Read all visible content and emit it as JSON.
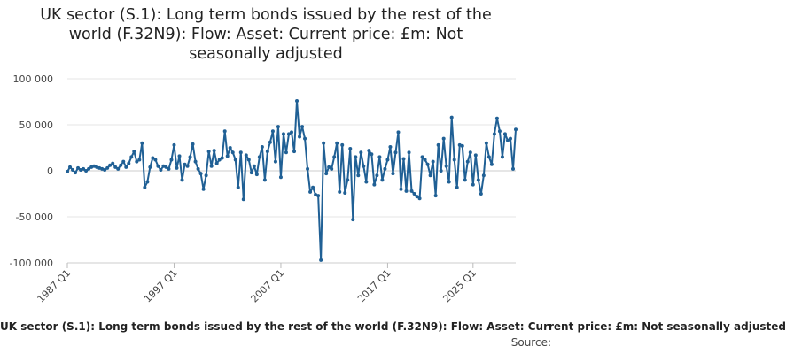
{
  "chart_data": {
    "type": "line",
    "title_lines": [
      "UK sector (S.1): Long term bonds issued by the rest of the",
      "world (F.32N9): Flow: Asset: Current price: £m: Not",
      "seasonally adjusted"
    ],
    "series_label": "UK sector (S.1): Long term bonds issued by the rest of the world (F.32N9): Flow: Asset: Current price: £m: Not seasonally adjusted",
    "source_label": "Source: ",
    "ylim": [
      -100000,
      100000
    ],
    "y_ticks": [
      100000,
      50000,
      0,
      -50000,
      -100000
    ],
    "y_tick_labels": [
      "100 000",
      "50 000",
      "0",
      "-50 000",
      "-100 000"
    ],
    "x_tick_labels": [
      "1987 Q1",
      "1997 Q1",
      "2007 Q1",
      "2017 Q1",
      "2025 Q1"
    ],
    "x_tick_years": [
      1987,
      1997,
      2007,
      2017,
      2025
    ],
    "grid": true,
    "line_color": "#206095",
    "start_year": 1987,
    "values": [
      -1000,
      4000,
      1000,
      -2000,
      3000,
      1000,
      2000,
      0,
      2000,
      4000,
      5000,
      4000,
      3000,
      2000,
      1000,
      3000,
      6000,
      8000,
      4000,
      2000,
      6000,
      10000,
      4000,
      8000,
      15000,
      21000,
      10000,
      12000,
      30000,
      -18000,
      -12000,
      4000,
      14000,
      12000,
      5000,
      1000,
      5000,
      4000,
      2000,
      12000,
      28000,
      3000,
      16000,
      -10000,
      7000,
      5000,
      15000,
      29000,
      10000,
      2000,
      -3000,
      -20000,
      -5000,
      21000,
      5000,
      22000,
      8000,
      12000,
      14000,
      43000,
      16000,
      25000,
      20000,
      12000,
      -18000,
      20000,
      -31000,
      17000,
      12000,
      -2000,
      5000,
      -4000,
      15000,
      26000,
      -10000,
      21000,
      31000,
      43000,
      10000,
      48000,
      -7000,
      40000,
      20000,
      40000,
      42000,
      21000,
      76000,
      37000,
      48000,
      35000,
      2000,
      -23000,
      -18000,
      -26000,
      -27000,
      -97000,
      30000,
      -3000,
      4000,
      2000,
      15000,
      30000,
      -23000,
      28000,
      -24000,
      -10000,
      24000,
      -53000,
      15000,
      -5000,
      20000,
      5000,
      -12000,
      22000,
      18000,
      -15000,
      -5000,
      15000,
      -10000,
      2000,
      12000,
      26000,
      -3000,
      20000,
      42000,
      -20000,
      13000,
      -22000,
      20000,
      -22000,
      -25000,
      -28000,
      -30000,
      15000,
      12000,
      7000,
      -5000,
      10000,
      -27000,
      28000,
      0,
      35000,
      5000,
      -12000,
      58000,
      12000,
      -18000,
      28000,
      27000,
      -10000,
      10000,
      20000,
      -15000,
      17000,
      -10000,
      -25000,
      -5000,
      30000,
      15000,
      7000,
      40000,
      57000,
      43000,
      15000,
      40000,
      33000,
      35000,
      2000,
      45000
    ]
  }
}
